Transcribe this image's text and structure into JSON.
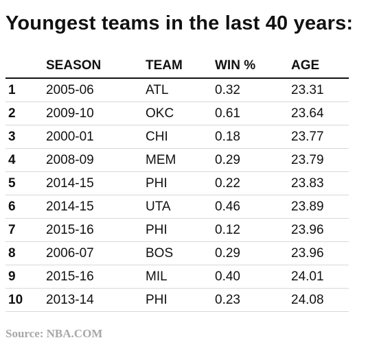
{
  "chart_data": {
    "type": "table",
    "title": "Youngest teams in the last 40 years:",
    "columns": [
      "",
      "SEASON",
      "TEAM",
      "WIN %",
      "AGE"
    ],
    "rows": [
      [
        "1",
        "2005-06",
        "ATL",
        "0.32",
        "23.31"
      ],
      [
        "2",
        "2009-10",
        "OKC",
        "0.61",
        "23.64"
      ],
      [
        "3",
        "2000-01",
        "CHI",
        "0.18",
        "23.77"
      ],
      [
        "4",
        "2008-09",
        "MEM",
        "0.29",
        "23.79"
      ],
      [
        "5",
        "2014-15",
        "PHI",
        "0.22",
        "23.83"
      ],
      [
        "6",
        "2014-15",
        "UTA",
        "0.46",
        "23.89"
      ],
      [
        "7",
        "2015-16",
        "PHI",
        "0.12",
        "23.96"
      ],
      [
        "8",
        "2006-07",
        "BOS",
        "0.29",
        "23.96"
      ],
      [
        "9",
        "2015-16",
        "MIL",
        "0.40",
        "24.01"
      ],
      [
        "10",
        "2013-14",
        "PHI",
        "0.23",
        "24.08"
      ]
    ],
    "source": "Source: NBA.COM"
  }
}
